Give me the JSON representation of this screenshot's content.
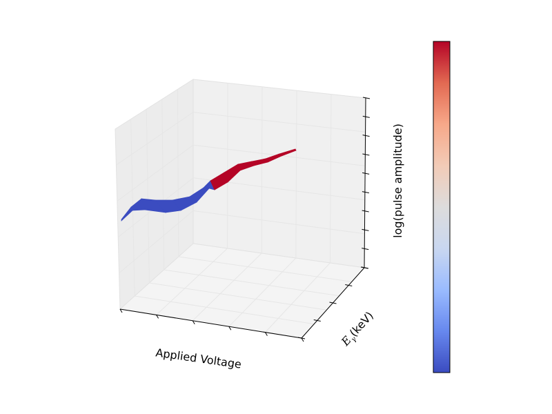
{
  "chart_data": {
    "type": "surface3d",
    "title": "",
    "xlabel": "Applied Voltage",
    "ylabel_symbol": "E",
    "ylabel_subscript": "γ",
    "ylabel_unit": "(keV)",
    "zlabel": "log(pulse amplitude)",
    "grid": true,
    "tick_labels_shown": false,
    "colormap": "coolwarm",
    "colormap_stops": [
      "#3b4cc0",
      "#6788ee",
      "#9abbff",
      "#c9d7f0",
      "#dddcdc",
      "#f2cbb7",
      "#f7a889",
      "#e26952",
      "#b40426"
    ],
    "surface_colors": {
      "low": "#3b4cc0",
      "high": "#b40426"
    },
    "colorbar_shown": true
  }
}
